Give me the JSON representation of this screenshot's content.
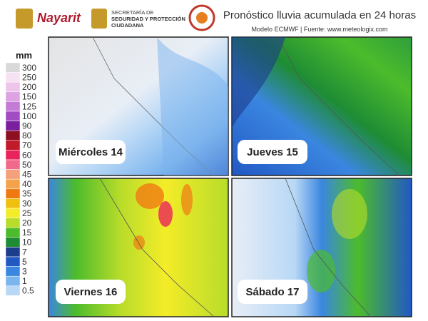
{
  "header": {
    "state_logo": "Nayarit",
    "agency": [
      "SECRETARÍA DE",
      "SEGURIDAD Y PROTECCIÓN",
      "CIUDADANA"
    ],
    "title": "Pronóstico lluvia acumulada en 24 horas",
    "subtitle": "Modelo ECMWF | Fuente: www.meteologix.com"
  },
  "legend": {
    "unit": "mm",
    "items": [
      {
        "value": 300,
        "color": "#d9d9d9"
      },
      {
        "value": 250,
        "color": "#f6e2f2"
      },
      {
        "value": 200,
        "color": "#eec4ea"
      },
      {
        "value": 150,
        "color": "#dca2e2"
      },
      {
        "value": 125,
        "color": "#c47bd6"
      },
      {
        "value": 100,
        "color": "#a24cc4"
      },
      {
        "value": 90,
        "color": "#7a1f9e"
      },
      {
        "value": 80,
        "color": "#8c1022"
      },
      {
        "value": 70,
        "color": "#c21a2a"
      },
      {
        "value": 60,
        "color": "#e8245a"
      },
      {
        "value": 50,
        "color": "#f06a8c"
      },
      {
        "value": 45,
        "color": "#f4a07a"
      },
      {
        "value": 40,
        "color": "#f5a34a"
      },
      {
        "value": 35,
        "color": "#f07a12"
      },
      {
        "value": 30,
        "color": "#f0c010"
      },
      {
        "value": 25,
        "color": "#f4ec28"
      },
      {
        "value": 20,
        "color": "#b8dc2a"
      },
      {
        "value": 15,
        "color": "#4cbc2c"
      },
      {
        "value": 10,
        "color": "#1e8c34"
      },
      {
        "value": 7,
        "color": "#1c3c8c"
      },
      {
        "value": 5,
        "color": "#2258c4"
      },
      {
        "value": 3,
        "color": "#3a86e0"
      },
      {
        "value": 1,
        "color": "#7cb4ee"
      },
      {
        "value": 0.5,
        "color": "#b8d8f6"
      }
    ]
  },
  "panels": [
    {
      "label": "Miércoles 14"
    },
    {
      "label": "Jueves 15"
    },
    {
      "label": "Viernes 16"
    },
    {
      "label": "Sábado 17"
    }
  ]
}
